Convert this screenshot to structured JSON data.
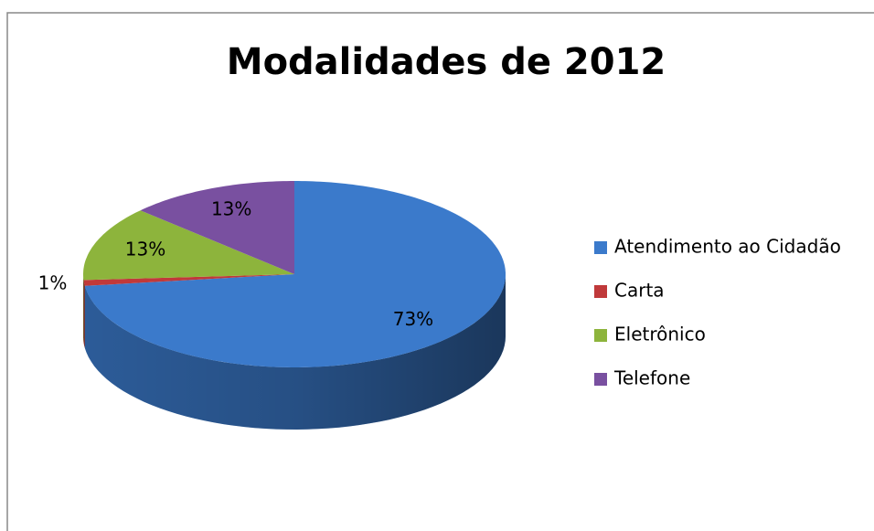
{
  "chart_data": {
    "type": "pie",
    "title": "Modalidades de 2012",
    "categories": [
      "Atendimento ao Cidadão",
      "Carta",
      "Eletrônico",
      "Telefone"
    ],
    "values": [
      73,
      1,
      13,
      13
    ],
    "value_labels": [
      "73%",
      "1%",
      "13%",
      "13%"
    ],
    "colors": [
      "#3b7acb",
      "#c0393a",
      "#8db43c",
      "#7950a0"
    ],
    "legend": "right"
  }
}
